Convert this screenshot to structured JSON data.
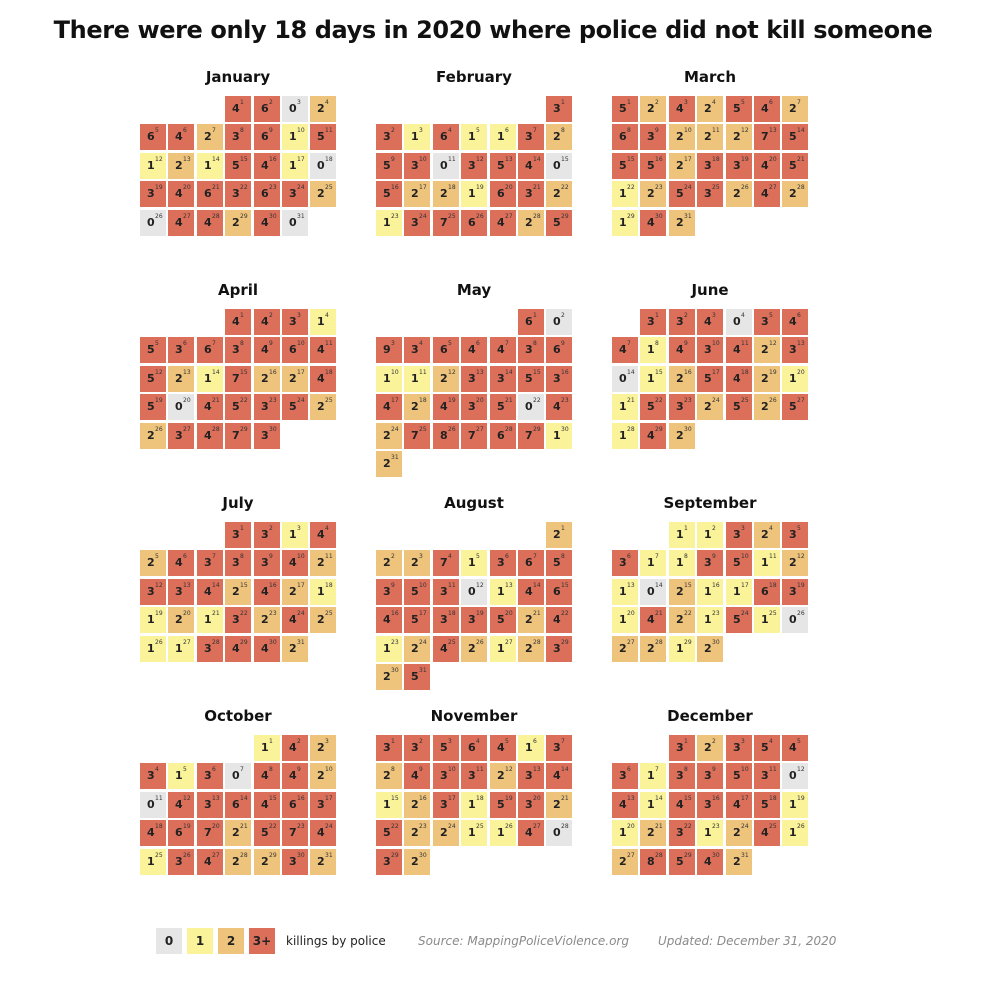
{
  "title": "There were only 18 days in 2020 where police did not kill someone",
  "legend": {
    "labels": [
      "0",
      "1",
      "2",
      "3+"
    ],
    "caption": "killings by police",
    "source": "Source: MappingPoliceViolence.org",
    "updated": "Updated: December 31, 2020"
  },
  "colors": {
    "zero": "#e6e6e6",
    "one": "#faf39a",
    "two": "#eec47c",
    "three_plus": "#dc6f5a"
  },
  "chart_data": {
    "type": "heatmap",
    "layout": "calendar",
    "year": 2020,
    "value_label": "killings by police",
    "months": [
      {
        "name": "January",
        "start_col": 3,
        "values": [
          4,
          6,
          0,
          2,
          6,
          4,
          2,
          3,
          6,
          1,
          5,
          1,
          2,
          1,
          5,
          4,
          1,
          0,
          3,
          4,
          6,
          3,
          6,
          3,
          2,
          0,
          4,
          4,
          2,
          4,
          0
        ]
      },
      {
        "name": "February",
        "start_col": 6,
        "values": [
          3,
          3,
          1,
          6,
          1,
          1,
          3,
          2,
          5,
          3,
          0,
          3,
          5,
          4,
          0,
          5,
          2,
          2,
          1,
          6,
          3,
          2,
          1,
          3,
          7,
          6,
          4,
          2,
          5
        ]
      },
      {
        "name": "March",
        "start_col": 0,
        "values": [
          5,
          2,
          4,
          2,
          5,
          4,
          2,
          6,
          3,
          2,
          2,
          2,
          7,
          5,
          5,
          5,
          2,
          3,
          3,
          4,
          5,
          1,
          2,
          5,
          3,
          2,
          4,
          2,
          1,
          4,
          2
        ]
      },
      {
        "name": "April",
        "start_col": 3,
        "values": [
          4,
          4,
          3,
          1,
          5,
          3,
          6,
          3,
          4,
          6,
          4,
          5,
          2,
          1,
          7,
          2,
          2,
          4,
          5,
          0,
          4,
          5,
          3,
          5,
          2,
          2,
          3,
          4,
          7,
          3
        ]
      },
      {
        "name": "May",
        "start_col": 5,
        "values": [
          6,
          0,
          9,
          3,
          6,
          4,
          4,
          3,
          6,
          1,
          1,
          2,
          3,
          3,
          5,
          3,
          4,
          2,
          4,
          3,
          5,
          0,
          4,
          2,
          7,
          8,
          7,
          6,
          7,
          1,
          2
        ]
      },
      {
        "name": "June",
        "start_col": 1,
        "values": [
          3,
          3,
          4,
          0,
          3,
          4,
          4,
          1,
          4,
          3,
          4,
          2,
          3,
          0,
          1,
          2,
          5,
          4,
          2,
          1,
          1,
          5,
          3,
          2,
          5,
          2,
          5,
          1,
          4,
          2
        ]
      },
      {
        "name": "July",
        "start_col": 3,
        "values": [
          3,
          3,
          1,
          4,
          2,
          4,
          3,
          3,
          3,
          4,
          2,
          3,
          3,
          4,
          2,
          4,
          2,
          1,
          1,
          2,
          1,
          3,
          2,
          4,
          2,
          1,
          1,
          3,
          4,
          4,
          2
        ]
      },
      {
        "name": "August",
        "start_col": 6,
        "values": [
          2,
          2,
          2,
          7,
          1,
          3,
          6,
          5,
          3,
          5,
          3,
          0,
          1,
          4,
          6,
          4,
          5,
          3,
          3,
          5,
          2,
          4,
          1,
          2,
          4,
          2,
          1,
          2,
          3,
          2,
          5
        ]
      },
      {
        "name": "September",
        "start_col": 2,
        "values": [
          1,
          1,
          3,
          2,
          3,
          3,
          1,
          1,
          3,
          5,
          1,
          2,
          1,
          0,
          2,
          1,
          1,
          6,
          3,
          1,
          4,
          2,
          1,
          5,
          1,
          0,
          2,
          2,
          1,
          2
        ]
      },
      {
        "name": "October",
        "start_col": 4,
        "values": [
          1,
          4,
          2,
          3,
          1,
          3,
          0,
          4,
          4,
          2,
          0,
          4,
          3,
          6,
          4,
          6,
          3,
          4,
          6,
          7,
          2,
          5,
          7,
          4,
          1,
          3,
          4,
          2,
          2,
          3,
          2
        ]
      },
      {
        "name": "November",
        "start_col": 0,
        "values": [
          3,
          3,
          5,
          6,
          4,
          1,
          3,
          2,
          4,
          3,
          3,
          2,
          3,
          4,
          1,
          2,
          3,
          1,
          5,
          3,
          2,
          5,
          2,
          2,
          1,
          1,
          4,
          0,
          3,
          2
        ]
      },
      {
        "name": "December",
        "start_col": 2,
        "values": [
          3,
          2,
          3,
          5,
          4,
          3,
          1,
          3,
          3,
          5,
          3,
          0,
          4,
          1,
          4,
          3,
          4,
          5,
          1,
          1,
          2,
          3,
          1,
          2,
          4,
          1,
          2,
          8,
          5,
          4,
          2
        ]
      }
    ]
  }
}
